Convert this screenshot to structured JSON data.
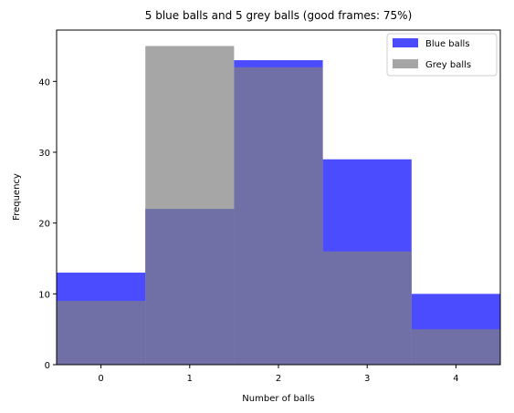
{
  "chart_data": {
    "type": "bar",
    "title": "5 blue balls and 5 grey balls (good frames: 75%)",
    "xlabel": "Number of balls",
    "ylabel": "Frequency",
    "categories": [
      "0",
      "1",
      "2",
      "3",
      "4"
    ],
    "x": [
      0,
      1,
      2,
      3,
      4
    ],
    "xlim": [
      -0.5,
      4.5
    ],
    "ylim": [
      0,
      47.25
    ],
    "x_ticks": [
      "0",
      "1",
      "2",
      "3",
      "4"
    ],
    "y_ticks": [
      "0",
      "10",
      "20",
      "30",
      "40"
    ],
    "grid": false,
    "legend_position": "top-right",
    "series": [
      {
        "name": "Blue balls",
        "color": "#0000ff",
        "opacity": 0.7,
        "values": [
          13,
          22,
          43,
          29,
          10
        ]
      },
      {
        "name": "Grey balls",
        "color": "#808080",
        "opacity": 0.7,
        "values": [
          9,
          45,
          42,
          16,
          5
        ]
      }
    ]
  }
}
